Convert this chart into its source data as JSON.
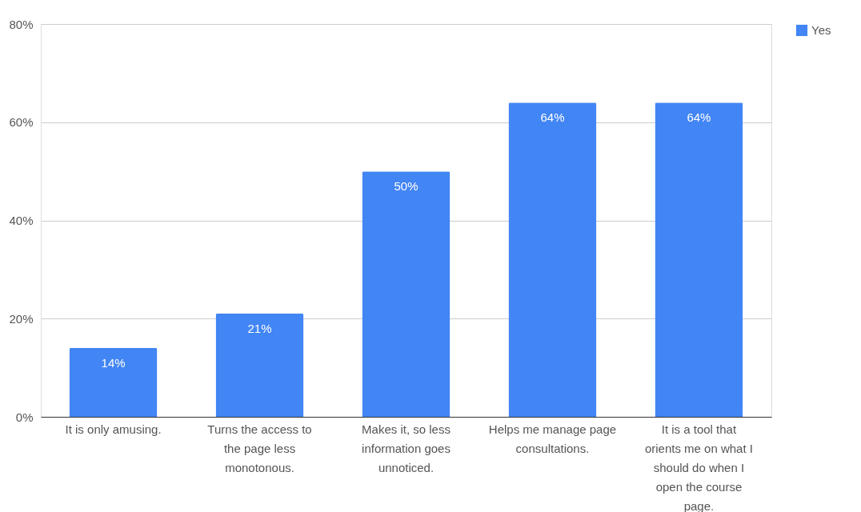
{
  "chart_data": {
    "type": "bar",
    "categories": [
      "It is only amusing.",
      "Turns the access to the page less monotonous.",
      "Makes it, so less information goes unnoticed.",
      "Helps me manage page consultations.",
      "It is a tool that orients me on what I should do when I open the course page."
    ],
    "series": [
      {
        "name": "Yes",
        "color": "#4285f4",
        "values": [
          14,
          21,
          50,
          64,
          64
        ],
        "value_labels": [
          "14%",
          "21%",
          "50%",
          "64%",
          "64%"
        ]
      }
    ],
    "ylim": [
      0,
      80
    ],
    "yticks": [
      {
        "value": 0,
        "label": "0%"
      },
      {
        "value": 20,
        "label": "20%"
      },
      {
        "value": 40,
        "label": "40%"
      },
      {
        "value": 60,
        "label": "60%"
      },
      {
        "value": 80,
        "label": "80%"
      }
    ],
    "grid": "y",
    "legend": "top right"
  }
}
